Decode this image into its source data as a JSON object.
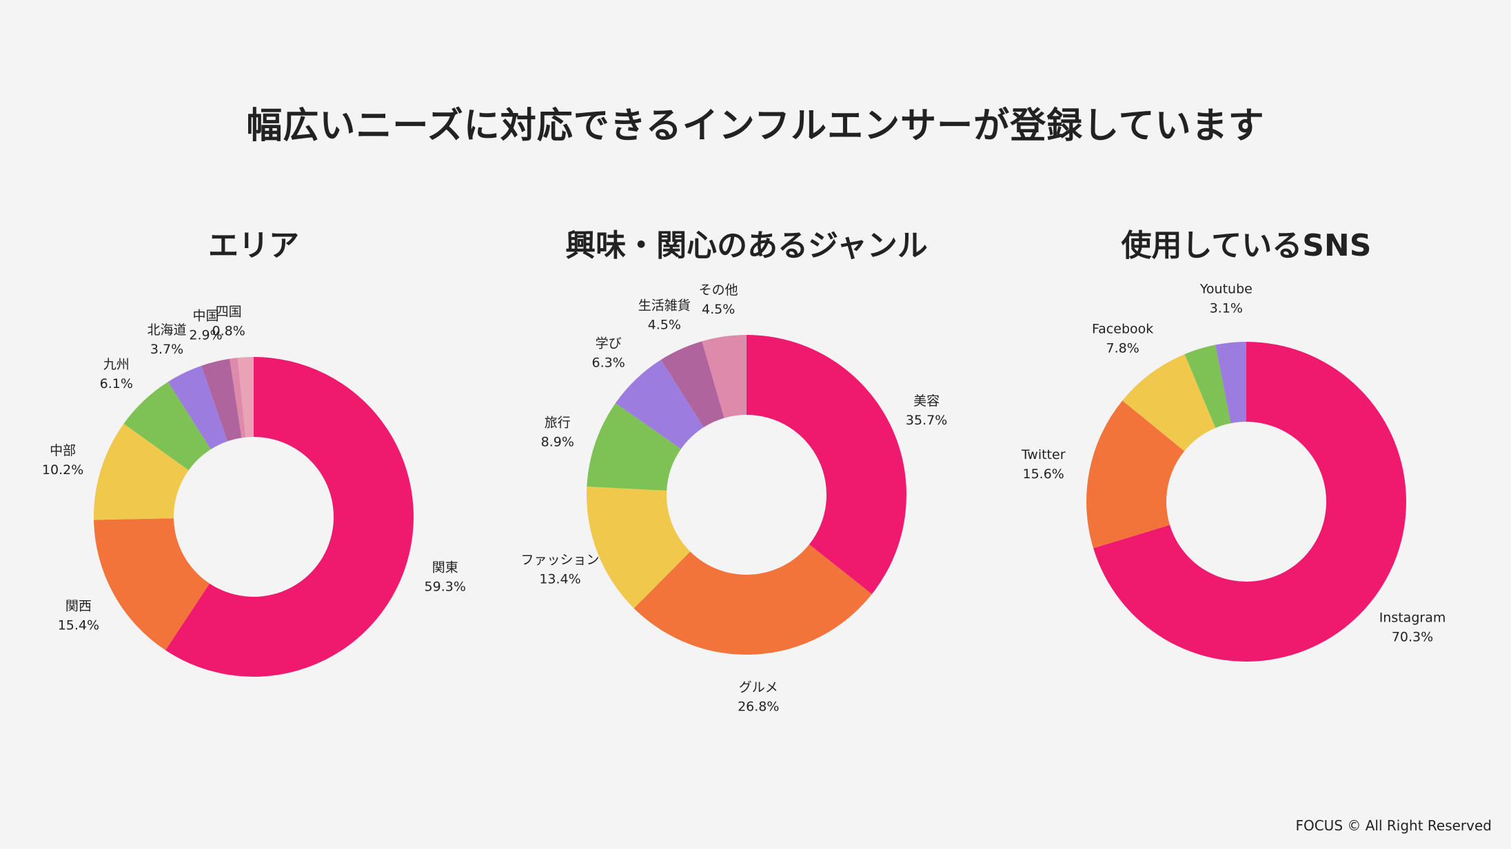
{
  "title": "幅広いニーズに対応できるインフルエンサーが登録しています",
  "footer": "FOCUS © All Right Reserved",
  "chart_data": [
    {
      "type": "pie",
      "id": "area",
      "title": "エリア",
      "hole": 0.5,
      "slices": [
        {
          "label": "関東",
          "value": 59.3,
          "display": "59.3%",
          "color": "#ef1a6e"
        },
        {
          "label": "関西",
          "value": 15.4,
          "display": "15.4%",
          "color": "#f2743a"
        },
        {
          "label": "中部",
          "value": 10.2,
          "display": "10.2%",
          "color": "#f0c84c"
        },
        {
          "label": "九州",
          "value": 6.1,
          "display": "6.1%",
          "color": "#7ec255"
        },
        {
          "label": "北海道",
          "value": 3.7,
          "display": "3.7%",
          "color": "#9d7ce0"
        },
        {
          "label": "中国",
          "value": 2.9,
          "display": "2.9%",
          "color": "#b0649e"
        },
        {
          "label": "四国",
          "value": 0.8,
          "display": "0.8%",
          "color": "#de8aaa"
        },
        {
          "label": "",
          "value": 1.6,
          "display": "",
          "color": "#e9a2b6"
        }
      ]
    },
    {
      "type": "pie",
      "id": "genre",
      "title": "興味・関心のあるジャンル",
      "hole": 0.5,
      "slices": [
        {
          "label": "美容",
          "value": 35.7,
          "display": "35.7%",
          "color": "#ef1a6e"
        },
        {
          "label": "グルメ",
          "value": 26.8,
          "display": "26.8%",
          "color": "#f2743a"
        },
        {
          "label": "ファッション",
          "value": 13.4,
          "display": "13.4%",
          "color": "#f0c84c"
        },
        {
          "label": "旅行",
          "value": 8.9,
          "display": "8.9%",
          "color": "#7ec255"
        },
        {
          "label": "学び",
          "value": 6.3,
          "display": "6.3%",
          "color": "#9d7ce0"
        },
        {
          "label": "生活雑貨",
          "value": 4.5,
          "display": "4.5%",
          "color": "#b0649e"
        },
        {
          "label": "その他",
          "value": 4.5,
          "display": "4.5%",
          "color": "#de8aaa"
        }
      ]
    },
    {
      "type": "pie",
      "id": "sns",
      "title": "使用しているSNS",
      "hole": 0.5,
      "slices": [
        {
          "label": "Instagram",
          "value": 70.3,
          "display": "70.3%",
          "color": "#ef1a6e"
        },
        {
          "label": "Twitter",
          "value": 15.6,
          "display": "15.6%",
          "color": "#f2743a"
        },
        {
          "label": "Facebook",
          "value": 7.8,
          "display": "7.8%",
          "color": "#f0c84c"
        },
        {
          "label": "",
          "value": 3.2,
          "display": "",
          "color": "#7ec255"
        },
        {
          "label": "Youtube",
          "value": 3.1,
          "display": "3.1%",
          "color": "#9d7ce0"
        }
      ]
    }
  ]
}
